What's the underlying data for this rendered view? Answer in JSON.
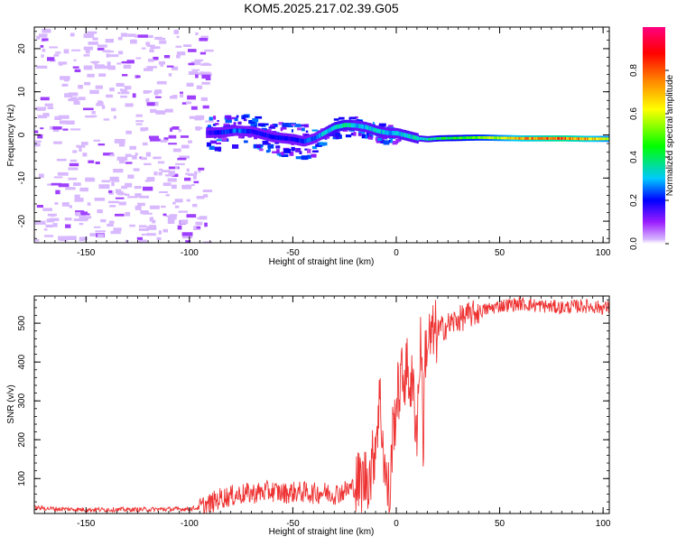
{
  "title": "KOM5.2025.217.02.39.G05",
  "chart_data": [
    {
      "type": "heatmap",
      "xlabel": "Height of straight line (km)",
      "ylabel": "Frequency (Hz)",
      "xlim": [
        -175,
        103
      ],
      "ylim": [
        -25,
        25
      ],
      "xticks": [
        -150,
        -100,
        -50,
        0,
        50,
        100
      ],
      "yticks": [
        -20,
        -10,
        0,
        10,
        20
      ],
      "colorbar": {
        "label": "Normalized spectral amplitude",
        "range": [
          0,
          1
        ],
        "ticks": [
          "0.0",
          "0.2",
          "0.4",
          "0.6",
          "0.8"
        ],
        "colors": [
          "#ffffff",
          "#9a1cff",
          "#0000ff",
          "#00c8ff",
          "#00ff00",
          "#ffff00",
          "#ff8800",
          "#ff0000",
          "#ff0080"
        ]
      },
      "ridge": {
        "description_free": true,
        "height_km": [
          -92,
          -85,
          -78,
          -70,
          -60,
          -50,
          -45,
          -40,
          -35,
          -30,
          -25,
          -20,
          -15,
          -10,
          -5,
          0,
          5,
          10,
          15,
          20,
          30,
          40,
          50,
          60,
          70,
          80,
          90,
          100,
          103
        ],
        "frequency_hz": [
          0.5,
          0.6,
          1.0,
          0.8,
          -0.5,
          -1.0,
          -1.5,
          -0.8,
          0.5,
          1.8,
          2.3,
          2.2,
          1.8,
          1.0,
          0.5,
          0.4,
          -0.2,
          -0.8,
          -1.0,
          -0.8,
          -0.7,
          -0.6,
          -0.7,
          -0.8,
          -0.8,
          -0.8,
          -0.9,
          -0.9,
          -0.9
        ],
        "amplitude": [
          0.15,
          0.2,
          0.25,
          0.2,
          0.18,
          0.2,
          0.22,
          0.25,
          0.3,
          0.35,
          0.35,
          0.3,
          0.3,
          0.32,
          0.3,
          0.3,
          0.32,
          0.32,
          0.35,
          0.4,
          0.45,
          0.5,
          0.6,
          0.7,
          0.75,
          0.8,
          0.72,
          0.62,
          0.6
        ]
      }
    },
    {
      "type": "line",
      "xlabel": "Height of straight line (km)",
      "ylabel": "SNR (v/v)",
      "xlim": [
        -175,
        103
      ],
      "ylim": [
        10,
        570
      ],
      "xticks": [
        -150,
        -100,
        -50,
        0,
        50,
        100
      ],
      "yticks": [
        100,
        200,
        300,
        400,
        500
      ],
      "color": "#ee3333",
      "x": [
        -175,
        -165,
        -150,
        -130,
        -110,
        -100,
        -95,
        -90,
        -85,
        -80,
        -75,
        -70,
        -65,
        -60,
        -55,
        -50,
        -45,
        -40,
        -35,
        -30,
        -25,
        -20,
        -15,
        -12,
        -10,
        -8,
        -5,
        -3,
        -2,
        0,
        2,
        5,
        8,
        10,
        12,
        13,
        14,
        15,
        17,
        20,
        25,
        30,
        35,
        40,
        50,
        60,
        70,
        80,
        90,
        100,
        103
      ],
      "y": [
        25,
        22,
        20,
        20,
        21,
        22,
        25,
        35,
        50,
        55,
        60,
        62,
        65,
        68,
        62,
        65,
        65,
        62,
        65,
        60,
        68,
        80,
        100,
        120,
        200,
        310,
        90,
        50,
        200,
        290,
        350,
        380,
        330,
        230,
        490,
        170,
        430,
        450,
        460,
        480,
        495,
        510,
        520,
        530,
        545,
        550,
        545,
        540,
        545,
        540,
        540
      ]
    }
  ]
}
